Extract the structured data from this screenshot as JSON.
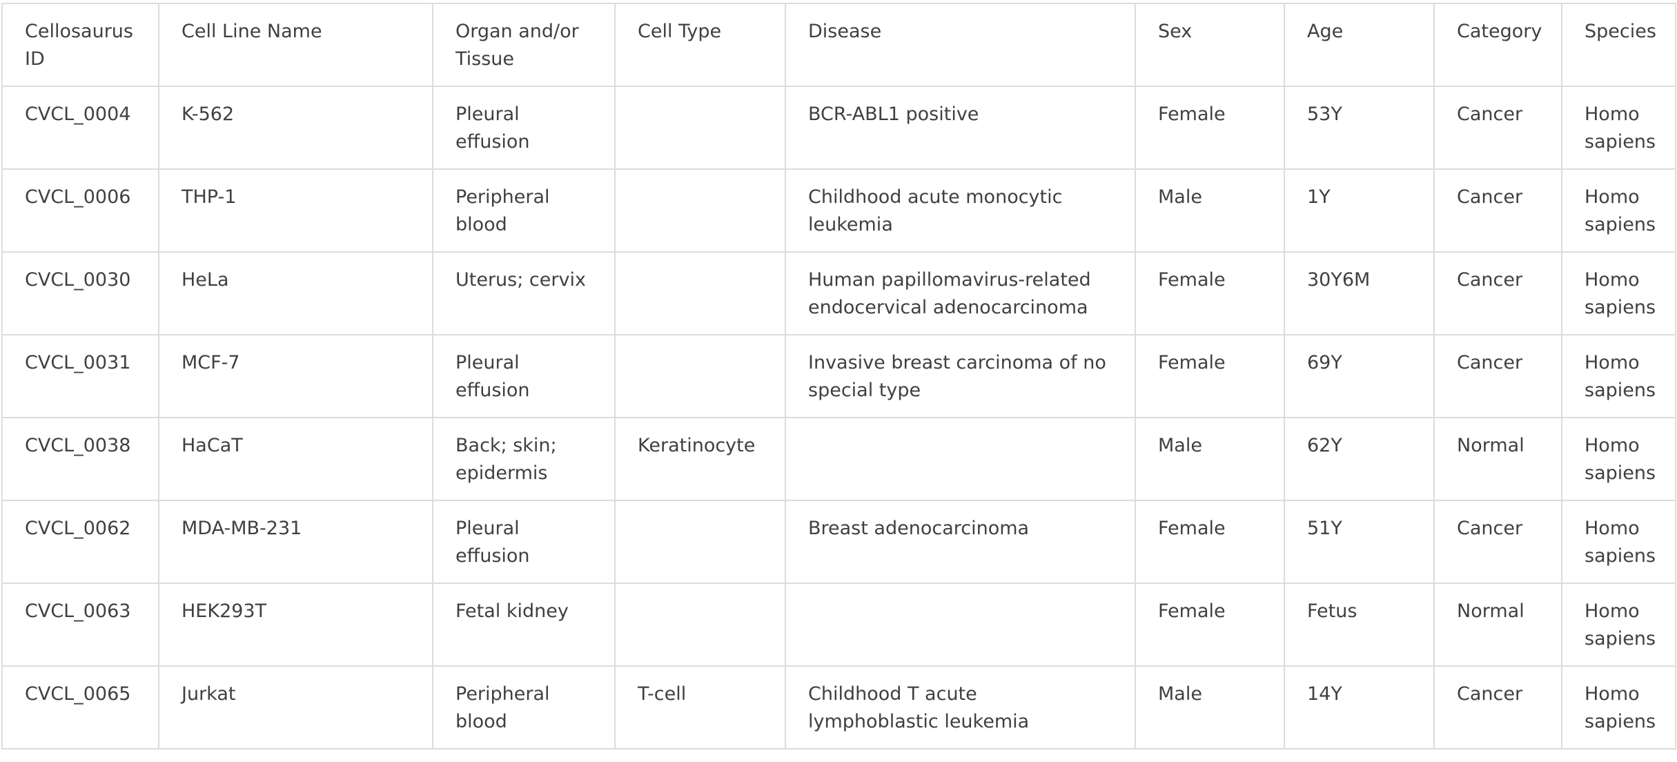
{
  "table": {
    "headers": [
      "Cellosaurus ID",
      "Cell Line Name",
      "Organ and/or Tissue",
      "Cell Type",
      "Disease",
      "Sex",
      "Age",
      "Category",
      "Species"
    ],
    "rows": [
      [
        "CVCL_0004",
        "K-562",
        "Pleural effusion",
        "",
        "BCR-ABL1 positive",
        "Female",
        "53Y",
        "Cancer",
        "Homo sapiens"
      ],
      [
        "CVCL_0006",
        "THP-1",
        "Peripheral blood",
        "",
        "Childhood acute monocytic leukemia",
        "Male",
        "1Y",
        "Cancer",
        "Homo sapiens"
      ],
      [
        "CVCL_0030",
        "HeLa",
        "Uterus; cervix",
        "",
        "Human papillomavirus-related endocervical adenocarcinoma",
        "Female",
        "30Y6M",
        "Cancer",
        "Homo sapiens"
      ],
      [
        "CVCL_0031",
        "MCF-7",
        "Pleural effusion",
        "",
        "Invasive breast carcinoma of no special type",
        "Female",
        "69Y",
        "Cancer",
        "Homo sapiens"
      ],
      [
        "CVCL_0038",
        "HaCaT",
        "Back; skin; epidermis",
        "Keratinocyte",
        "",
        "Male",
        "62Y",
        "Normal",
        "Homo sapiens"
      ],
      [
        "CVCL_0062",
        "MDA-MB-231",
        "Pleural effusion",
        "",
        "Breast adenocarcinoma",
        "Female",
        "51Y",
        "Cancer",
        "Homo sapiens"
      ],
      [
        "CVCL_0063",
        "HEK293T",
        "Fetal kidney",
        "",
        "",
        "Female",
        "Fetus",
        "Normal",
        "Homo sapiens"
      ],
      [
        "CVCL_0065",
        "Jurkat",
        "Peripheral blood",
        "T-cell",
        "Childhood T acute lymphoblastic leukemia",
        "Male",
        "14Y",
        "Cancer",
        "Homo sapiens"
      ]
    ]
  }
}
